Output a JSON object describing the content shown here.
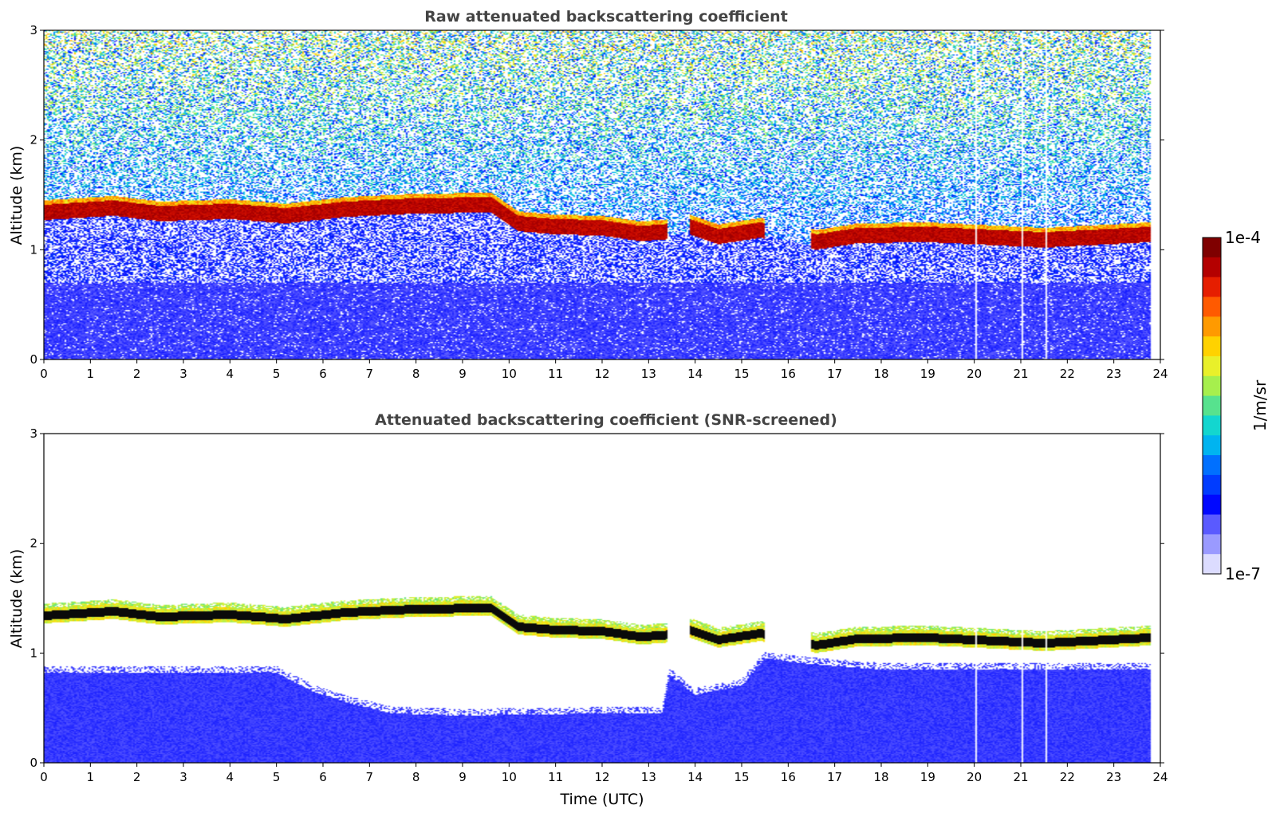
{
  "chart_data": [
    {
      "type": "heatmap",
      "title": "Raw attenuated backscattering coefficient",
      "xlabel": "",
      "ylabel": "Altitude (km)",
      "xlim": [
        0,
        24
      ],
      "ylim": [
        0,
        3
      ],
      "xticks": [
        "0",
        "1",
        "2",
        "3",
        "4",
        "5",
        "6",
        "7",
        "8",
        "9",
        "10",
        "11",
        "12",
        "13",
        "14",
        "15",
        "16",
        "17",
        "18",
        "19",
        "20",
        "21",
        "22",
        "23",
        "24"
      ],
      "yticks": [
        "0",
        "1",
        "2",
        "3"
      ],
      "screened": false,
      "data_end_hour": 23.8,
      "cloud_base_km": [
        {
          "t": 0,
          "h": 1.3
        },
        {
          "t": 1.5,
          "h": 1.34
        },
        {
          "t": 2.5,
          "h": 1.29
        },
        {
          "t": 4,
          "h": 1.31
        },
        {
          "t": 5.2,
          "h": 1.27
        },
        {
          "t": 6.5,
          "h": 1.33
        },
        {
          "t": 8,
          "h": 1.36
        },
        {
          "t": 9.6,
          "h": 1.37
        },
        {
          "t": 10.2,
          "h": 1.2
        },
        {
          "t": 11,
          "h": 1.17
        },
        {
          "t": 12,
          "h": 1.16
        },
        {
          "t": 12.8,
          "h": 1.11
        },
        {
          "t": 13.3,
          "h": 1.12
        },
        {
          "t": 13.9,
          "h": 1.17
        },
        {
          "t": 14.5,
          "h": 1.08
        },
        {
          "t": 15.4,
          "h": 1.14
        },
        {
          "t": 16.6,
          "h": 1.03
        },
        {
          "t": 17.5,
          "h": 1.09
        },
        {
          "t": 19,
          "h": 1.1
        },
        {
          "t": 21.5,
          "h": 1.05
        },
        {
          "t": 23.8,
          "h": 1.1
        }
      ],
      "cloud_gaps_hour": [
        [
          13.42,
          13.9
        ],
        [
          15.5,
          16.5
        ]
      ],
      "missing_profiles_hour": [
        20.05,
        21.05,
        21.55
      ]
    },
    {
      "type": "heatmap",
      "title": "Attenuated backscattering coefficient (SNR-screened)",
      "xlabel": "Time (UTC)",
      "ylabel": "Altitude (km)",
      "xlim": [
        0,
        24
      ],
      "ylim": [
        0,
        3
      ],
      "xticks": [
        "0",
        "1",
        "2",
        "3",
        "4",
        "5",
        "6",
        "7",
        "8",
        "9",
        "10",
        "11",
        "12",
        "13",
        "14",
        "15",
        "16",
        "17",
        "18",
        "19",
        "20",
        "21",
        "22",
        "23",
        "24"
      ],
      "yticks": [
        "0",
        "1",
        "2",
        "3"
      ],
      "screened": true,
      "data_end_hour": 23.8,
      "cloud_base_km": [
        {
          "t": 0,
          "h": 1.3
        },
        {
          "t": 1.5,
          "h": 1.34
        },
        {
          "t": 2.5,
          "h": 1.29
        },
        {
          "t": 4,
          "h": 1.31
        },
        {
          "t": 5.2,
          "h": 1.27
        },
        {
          "t": 6.5,
          "h": 1.33
        },
        {
          "t": 8,
          "h": 1.36
        },
        {
          "t": 9.6,
          "h": 1.37
        },
        {
          "t": 10.2,
          "h": 1.2
        },
        {
          "t": 11,
          "h": 1.17
        },
        {
          "t": 12,
          "h": 1.16
        },
        {
          "t": 12.8,
          "h": 1.11
        },
        {
          "t": 13.3,
          "h": 1.12
        },
        {
          "t": 13.9,
          "h": 1.17
        },
        {
          "t": 14.5,
          "h": 1.08
        },
        {
          "t": 15.4,
          "h": 1.14
        },
        {
          "t": 16.6,
          "h": 1.03
        },
        {
          "t": 17.5,
          "h": 1.09
        },
        {
          "t": 19,
          "h": 1.1
        },
        {
          "t": 21.5,
          "h": 1.05
        },
        {
          "t": 23.8,
          "h": 1.1
        }
      ],
      "boundary_layer_top_km": [
        {
          "t": 0,
          "h": 0.82
        },
        {
          "t": 5,
          "h": 0.82
        },
        {
          "t": 5.8,
          "h": 0.65
        },
        {
          "t": 6.5,
          "h": 0.55
        },
        {
          "t": 7.5,
          "h": 0.45
        },
        {
          "t": 9,
          "h": 0.43
        },
        {
          "t": 12,
          "h": 0.45
        },
        {
          "t": 13.3,
          "h": 0.45
        },
        {
          "t": 13.45,
          "h": 0.8
        },
        {
          "t": 14,
          "h": 0.62
        },
        {
          "t": 15,
          "h": 0.7
        },
        {
          "t": 15.5,
          "h": 0.95
        },
        {
          "t": 16.5,
          "h": 0.9
        },
        {
          "t": 18,
          "h": 0.85
        },
        {
          "t": 23.8,
          "h": 0.85
        }
      ],
      "cloud_gaps_hour": [
        [
          13.42,
          13.9
        ],
        [
          15.5,
          16.5
        ]
      ],
      "missing_profiles_hour": [
        20.05,
        21.05,
        21.55
      ]
    }
  ],
  "colorbar": {
    "max_label": "1e-4",
    "min_label": "1e-7",
    "unit_label": "1/m/sr",
    "colors": [
      "#7f0000",
      "#b40000",
      "#e61e00",
      "#ff5a00",
      "#ff9a00",
      "#ffd200",
      "#e9f02a",
      "#a6ef4d",
      "#57e28e",
      "#13d6cf",
      "#00b4f0",
      "#0070ff",
      "#003cff",
      "#0008ff",
      "#5a5aff",
      "#9a9aff",
      "#dcdcff"
    ]
  }
}
